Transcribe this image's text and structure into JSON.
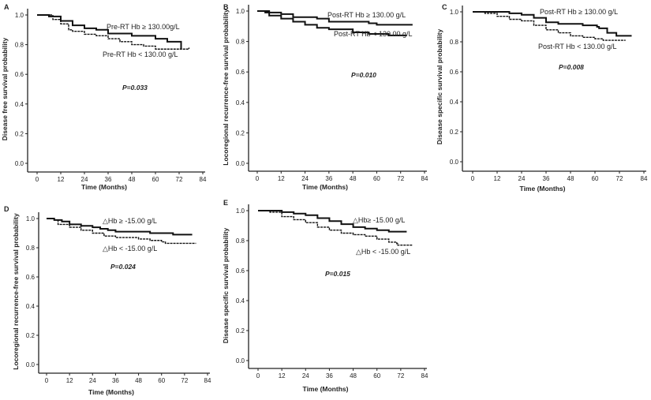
{
  "chart_data": [
    {
      "panel": "A",
      "type": "line",
      "xlabel": "Time (Months)",
      "ylabel": "Disease free survival probability",
      "xlim": [
        0,
        84
      ],
      "ylim": [
        0,
        1
      ],
      "xticks": [
        "0",
        "12",
        "24",
        "36",
        "48",
        "60",
        "72",
        "84"
      ],
      "yticks": [
        "0.0",
        "0.2",
        "0.4",
        "0.6",
        "0.8",
        "1.0"
      ],
      "p_value": "P=0.033",
      "series": [
        {
          "name": "Pre-RT Hb ≥ 130.00g/L",
          "style": "solid",
          "x": [
            0,
            4,
            6,
            12,
            18,
            24,
            30,
            36,
            48,
            60,
            66,
            73,
            73
          ],
          "y": [
            1,
            1,
            0.99,
            0.96,
            0.93,
            0.91,
            0.9,
            0.875,
            0.86,
            0.84,
            0.82,
            0.82,
            0.77
          ]
        },
        {
          "name": "Pre-RT Hb < 130.00 g/L",
          "style": "dashed",
          "x": [
            0,
            4,
            8,
            12,
            16,
            18,
            24,
            30,
            36,
            42,
            48,
            54,
            60,
            72,
            77
          ],
          "y": [
            1,
            1,
            0.97,
            0.94,
            0.9,
            0.89,
            0.87,
            0.86,
            0.84,
            0.82,
            0.8,
            0.79,
            0.77,
            0.77,
            0.78
          ]
        }
      ]
    },
    {
      "panel": "B",
      "type": "line",
      "xlabel": "Time (Months)",
      "ylabel": "Locoregional recurrence-free survival probability",
      "xlim": [
        0,
        84
      ],
      "ylim": [
        0,
        1
      ],
      "xticks": [
        "0",
        "12",
        "24",
        "36",
        "48",
        "60",
        "72",
        "84"
      ],
      "yticks": [
        "0.0",
        "0.2",
        "0.4",
        "0.6",
        "0.8",
        "1.0"
      ],
      "p_value": "P=0.010",
      "series": [
        {
          "name": "Post-RT Hb ≥ 130.00 g/L",
          "style": "solid",
          "x": [
            0,
            6,
            12,
            18,
            24,
            30,
            36,
            48,
            56,
            60,
            66,
            78
          ],
          "y": [
            1,
            0.99,
            0.98,
            0.96,
            0.96,
            0.95,
            0.93,
            0.93,
            0.92,
            0.91,
            0.91,
            0.91
          ]
        },
        {
          "name": "Post-RT Hb < 130.00 g/L",
          "style": "solid",
          "x": [
            0,
            4,
            6,
            12,
            18,
            24,
            30,
            36,
            48,
            56,
            66,
            75
          ],
          "y": [
            1,
            0.99,
            0.97,
            0.95,
            0.93,
            0.91,
            0.89,
            0.88,
            0.86,
            0.85,
            0.84,
            0.84
          ]
        }
      ]
    },
    {
      "panel": "C",
      "type": "line",
      "xlabel": "Time (Months)",
      "ylabel": "Disease specific survival probability",
      "xlim": [
        0,
        84
      ],
      "ylim": [
        0,
        1
      ],
      "xticks": [
        "0",
        "12",
        "24",
        "36",
        "48",
        "60",
        "72",
        "84"
      ],
      "yticks": [
        "0.0",
        "0.2",
        "0.4",
        "0.6",
        "0.8",
        "1.0"
      ],
      "p_value": "P=0.008",
      "series": [
        {
          "name": "Post-RT Hb ≥ 130.00 g/L",
          "style": "solid",
          "x": [
            0,
            12,
            18,
            24,
            30,
            36,
            42,
            48,
            54,
            61,
            62,
            65,
            66,
            70,
            70.5,
            78
          ],
          "y": [
            1,
            1,
            0.99,
            0.98,
            0.96,
            0.93,
            0.92,
            0.92,
            0.91,
            0.9,
            0.89,
            0.89,
            0.86,
            0.86,
            0.84,
            0.84
          ]
        },
        {
          "name": "Post-RT Hb < 130.00 g/L",
          "style": "dashed",
          "x": [
            0,
            6,
            12,
            18,
            24,
            30,
            36,
            42,
            48,
            54,
            60,
            64,
            75
          ],
          "y": [
            1,
            0.99,
            0.97,
            0.95,
            0.94,
            0.91,
            0.88,
            0.86,
            0.84,
            0.83,
            0.82,
            0.81,
            0.81
          ]
        }
      ]
    },
    {
      "panel": "D",
      "type": "line",
      "xlabel": "Time (Months)",
      "ylabel": "Locoregional recurrence-free survival probability",
      "xlim": [
        0,
        84
      ],
      "ylim": [
        0,
        1
      ],
      "xticks": [
        "0",
        "12",
        "24",
        "36",
        "48",
        "60",
        "72",
        "84"
      ],
      "yticks": [
        "0.0",
        "0.2",
        "0.4",
        "0.6",
        "0.8",
        "1.0"
      ],
      "p_value": "P=0.024",
      "series": [
        {
          "name": "△Hb ≥ -15.00 g/L",
          "style": "solid",
          "x": [
            0,
            4,
            8,
            12,
            18,
            24,
            28,
            32,
            36,
            48,
            54,
            66,
            76
          ],
          "y": [
            1,
            0.99,
            0.98,
            0.96,
            0.95,
            0.94,
            0.93,
            0.92,
            0.91,
            0.91,
            0.9,
            0.89,
            0.89
          ]
        },
        {
          "name": "△Hb < -15.00 g/L",
          "style": "dashed",
          "x": [
            0,
            4,
            6,
            12,
            18,
            24,
            30,
            36,
            48,
            54,
            60,
            62,
            78
          ],
          "y": [
            1,
            0.99,
            0.96,
            0.94,
            0.92,
            0.9,
            0.88,
            0.87,
            0.86,
            0.85,
            0.84,
            0.83,
            0.83
          ]
        }
      ]
    },
    {
      "panel": "E",
      "type": "line",
      "xlabel": "Time (Months)",
      "ylabel": "Disease specific survival probability",
      "xlim": [
        0,
        84
      ],
      "ylim": [
        0,
        1
      ],
      "xticks": [
        "0",
        "12",
        "24",
        "36",
        "48",
        "60",
        "72",
        "84"
      ],
      "yticks": [
        "0.0",
        "0.2",
        "0.4",
        "0.6",
        "0.8",
        "1.0"
      ],
      "p_value": "P=0.015",
      "series": [
        {
          "name": "△Hb≥ -15.00 g/L",
          "style": "solid",
          "x": [
            0,
            8,
            12,
            18,
            24,
            30,
            36,
            42,
            48,
            54,
            60,
            66,
            75
          ],
          "y": [
            1,
            1,
            0.99,
            0.98,
            0.97,
            0.95,
            0.93,
            0.91,
            0.89,
            0.88,
            0.87,
            0.86,
            0.86
          ]
        },
        {
          "name": "△Hb < -15.00 g/L",
          "style": "dashed",
          "x": [
            0,
            6,
            12,
            18,
            24,
            30,
            36,
            42,
            48,
            54,
            60,
            66,
            70,
            70.5,
            78
          ],
          "y": [
            1,
            0.99,
            0.96,
            0.94,
            0.92,
            0.89,
            0.87,
            0.85,
            0.84,
            0.83,
            0.81,
            0.79,
            0.78,
            0.77,
            0.77
          ]
        }
      ]
    }
  ]
}
